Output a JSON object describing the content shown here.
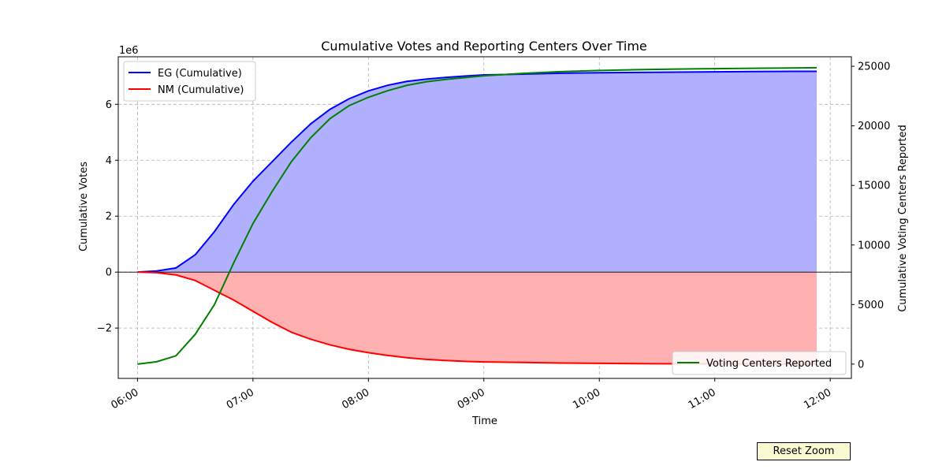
{
  "chart_data": {
    "type": "line",
    "title": "Cumulative Votes and Reporting Centers Over Time",
    "xlabel": "Time",
    "ylabel_left": "Cumulative Votes",
    "ylabel_right": "Cumulative Voting Centers Reported",
    "left_axis_offset_label": "1e6",
    "x_ticks": [
      "06:00",
      "07:00",
      "08:00",
      "09:00",
      "10:00",
      "11:00",
      "12:00"
    ],
    "y_left_ticks": [
      "−2",
      "0",
      "2",
      "4",
      "6"
    ],
    "y_right_ticks": [
      "0",
      "5000",
      "10000",
      "15000",
      "20000",
      "25000"
    ],
    "xlim": [
      "05:50",
      "12:11"
    ],
    "ylim_left": [
      -3.8,
      7.7
    ],
    "ylim_right": [
      -1200,
      25800
    ],
    "grid": true,
    "legend_left": "top-left",
    "legend_right": "lower-right",
    "zero_line": true,
    "series": [
      {
        "name": "EG (Cumulative)",
        "axis": "left",
        "color": "#0000ff",
        "fill_color": "#b0b0ff",
        "x": [
          "06:00",
          "06:10",
          "06:20",
          "06:30",
          "06:40",
          "06:50",
          "07:00",
          "07:10",
          "07:20",
          "07:30",
          "07:40",
          "07:50",
          "08:00",
          "08:10",
          "08:20",
          "08:30",
          "08:40",
          "08:50",
          "09:00",
          "09:20",
          "09:40",
          "10:00",
          "10:20",
          "10:40",
          "11:00",
          "11:20",
          "11:40",
          "11:53"
        ],
        "values": [
          0.0,
          0.04,
          0.15,
          0.62,
          1.45,
          2.42,
          3.25,
          3.95,
          4.65,
          5.3,
          5.82,
          6.2,
          6.48,
          6.68,
          6.82,
          6.9,
          6.96,
          7.01,
          7.05,
          7.08,
          7.11,
          7.13,
          7.14,
          7.15,
          7.16,
          7.17,
          7.18,
          7.18
        ]
      },
      {
        "name": "NM (Cumulative)",
        "axis": "left",
        "color": "#ff0000",
        "fill_color": "#ffb0b0",
        "x": [
          "06:00",
          "06:10",
          "06:20",
          "06:30",
          "06:40",
          "06:50",
          "07:00",
          "07:10",
          "07:20",
          "07:30",
          "07:40",
          "07:50",
          "08:00",
          "08:10",
          "08:20",
          "08:30",
          "08:40",
          "08:50",
          "09:00",
          "09:20",
          "09:40",
          "10:00",
          "10:20",
          "10:40",
          "11:00",
          "11:20",
          "11:40",
          "11:53"
        ],
        "values": [
          0.0,
          -0.02,
          -0.1,
          -0.3,
          -0.65,
          -1.0,
          -1.4,
          -1.8,
          -2.15,
          -2.4,
          -2.6,
          -2.76,
          -2.88,
          -2.98,
          -3.06,
          -3.12,
          -3.16,
          -3.19,
          -3.21,
          -3.23,
          -3.25,
          -3.26,
          -3.27,
          -3.28,
          -3.28,
          -3.28,
          -3.29,
          -3.29
        ]
      },
      {
        "name": "Voting Centers Reported",
        "axis": "right",
        "color": "#008000",
        "x": [
          "06:00",
          "06:10",
          "06:20",
          "06:30",
          "06:40",
          "06:50",
          "07:00",
          "07:10",
          "07:20",
          "07:30",
          "07:40",
          "07:50",
          "08:00",
          "08:10",
          "08:20",
          "08:30",
          "08:40",
          "08:50",
          "09:00",
          "09:20",
          "09:40",
          "10:00",
          "10:20",
          "10:40",
          "11:00",
          "11:20",
          "11:40",
          "11:53"
        ],
        "values": [
          0,
          200,
          700,
          2500,
          5000,
          8500,
          11800,
          14500,
          17000,
          19000,
          20600,
          21700,
          22400,
          22950,
          23400,
          23700,
          23900,
          24050,
          24200,
          24400,
          24550,
          24650,
          24720,
          24770,
          24800,
          24830,
          24860,
          24880
        ]
      }
    ]
  },
  "controls": {
    "reset_zoom_label": "Reset Zoom"
  }
}
